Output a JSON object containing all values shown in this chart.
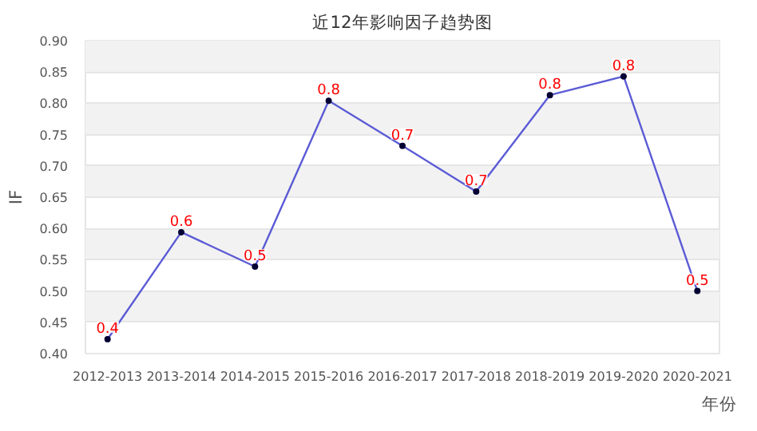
{
  "chart_data": {
    "type": "line",
    "title": "近12年影响因子趋势图",
    "xlabel": "年份",
    "ylabel": "IF",
    "categories": [
      "2012-2013",
      "2013-2014",
      "2014-2015",
      "2015-2016",
      "2016-2017",
      "2017-2018",
      "2018-2019",
      "2019-2020",
      "2020-2021"
    ],
    "series": [
      {
        "color": "#5b5bd6",
        "values": [
          0.423,
          0.594,
          0.539,
          0.804,
          0.732,
          0.659,
          0.813,
          0.843,
          0.5
        ],
        "value_labels": [
          "0.4",
          "0.6",
          "0.5",
          "0.8",
          "0.7",
          "0.7",
          "0.8",
          "0.8",
          "0.5"
        ]
      }
    ],
    "ylim": [
      0.4,
      0.9
    ],
    "yticks": [
      {
        "value": 0.4,
        "label": "0.40"
      },
      {
        "value": 0.45,
        "label": "0.45"
      },
      {
        "value": 0.5,
        "label": "0.50"
      },
      {
        "value": 0.55,
        "label": "0.55"
      },
      {
        "value": 0.6,
        "label": "0.60"
      },
      {
        "value": 0.65,
        "label": "0.65"
      },
      {
        "value": 0.7,
        "label": "0.70"
      },
      {
        "value": 0.75,
        "label": "0.75"
      },
      {
        "value": 0.8,
        "label": "0.80"
      },
      {
        "value": 0.85,
        "label": "0.85"
      },
      {
        "value": 0.9,
        "label": "0.90"
      }
    ],
    "grid": "y",
    "marker": "circle",
    "line_style": "solid"
  }
}
